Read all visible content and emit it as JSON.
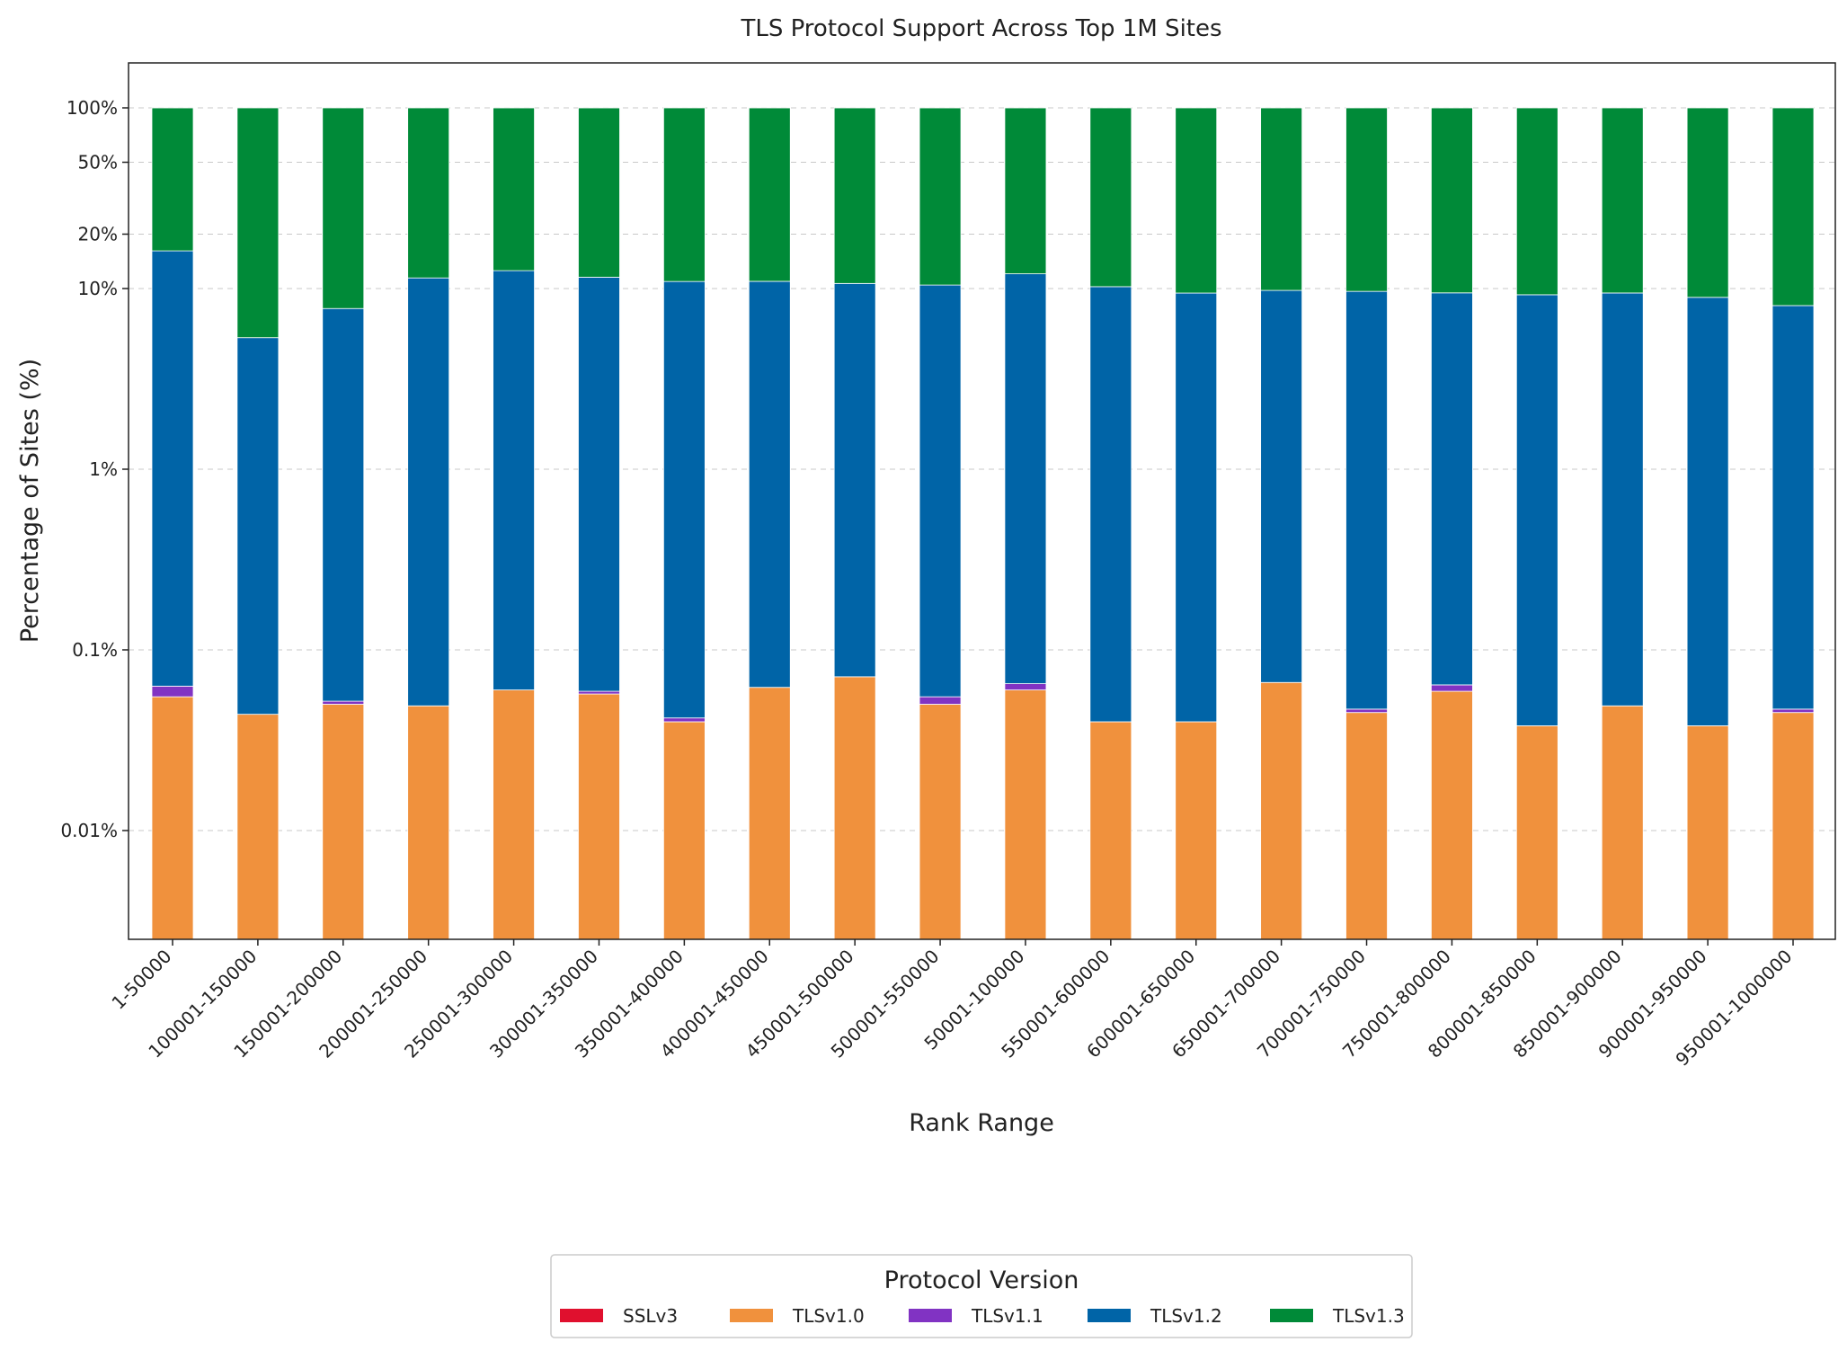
{
  "chart_data": {
    "type": "bar",
    "stacked": true,
    "title": "TLS Protocol Support Across Top 1M Sites",
    "xlabel": "Rank Range",
    "ylabel": "Percentage of Sites (%)",
    "yscale": "log",
    "ylim": [
      0.0025,
      100
    ],
    "yticks": [
      0.01,
      0.1,
      1,
      10,
      20,
      50,
      100
    ],
    "ytick_labels": [
      "0.01%",
      "0.1%",
      "1%",
      "10%",
      "20%",
      "50%",
      "100%"
    ],
    "grid": "y-dashed",
    "legend": {
      "title": "Protocol Version",
      "placement": "bottom-center"
    },
    "categories": [
      "1-50000",
      "100001-150000",
      "150001-200000",
      "200001-250000",
      "250001-300000",
      "300001-350000",
      "350001-400000",
      "400001-450000",
      "450001-500000",
      "500001-550000",
      "50001-100000",
      "550001-600000",
      "600001-650000",
      "650001-700000",
      "700001-750000",
      "750001-800000",
      "800001-850000",
      "850001-900000",
      "900001-950000",
      "950001-1000000"
    ],
    "series": [
      {
        "name": "SSLv3",
        "color": "#e0102e",
        "values": [
          0,
          0,
          0,
          0,
          0,
          0,
          0,
          0,
          0,
          0,
          0,
          0,
          0,
          0,
          0,
          0,
          0,
          0,
          0,
          0
        ]
      },
      {
        "name": "TLSv1.0",
        "color": "#f0913d",
        "values": [
          0.055,
          0.044,
          0.05,
          0.049,
          0.06,
          0.057,
          0.04,
          0.062,
          0.071,
          0.05,
          0.06,
          0.04,
          0.04,
          0.066,
          0.045,
          0.059,
          0.038,
          0.049,
          0.038,
          0.045
        ]
      },
      {
        "name": "TLSv1.1",
        "color": "#8133c3",
        "values": [
          0.008,
          0,
          0.002,
          0,
          0,
          0.002,
          0.002,
          0,
          0,
          0.005,
          0.005,
          0,
          0,
          0,
          0.002,
          0.005,
          0,
          0,
          0,
          0.002
        ]
      },
      {
        "name": "TLSv1.2",
        "color": "#0064a7",
        "values": [
          16.1,
          5.3,
          7.7,
          11.4,
          12.5,
          11.5,
          10.9,
          10.9,
          10.6,
          10.4,
          12.0,
          10.2,
          9.4,
          9.7,
          9.6,
          9.4,
          9.2,
          9.4,
          8.9,
          8.0
        ]
      },
      {
        "name": "TLSv1.3",
        "color": "#008a38",
        "values": [
          83.8,
          94.7,
          92.3,
          88.6,
          87.4,
          88.4,
          89.1,
          89.0,
          89.3,
          89.5,
          87.9,
          89.8,
          90.6,
          90.2,
          90.4,
          90.5,
          90.8,
          90.6,
          91.1,
          92.0
        ]
      }
    ]
  }
}
